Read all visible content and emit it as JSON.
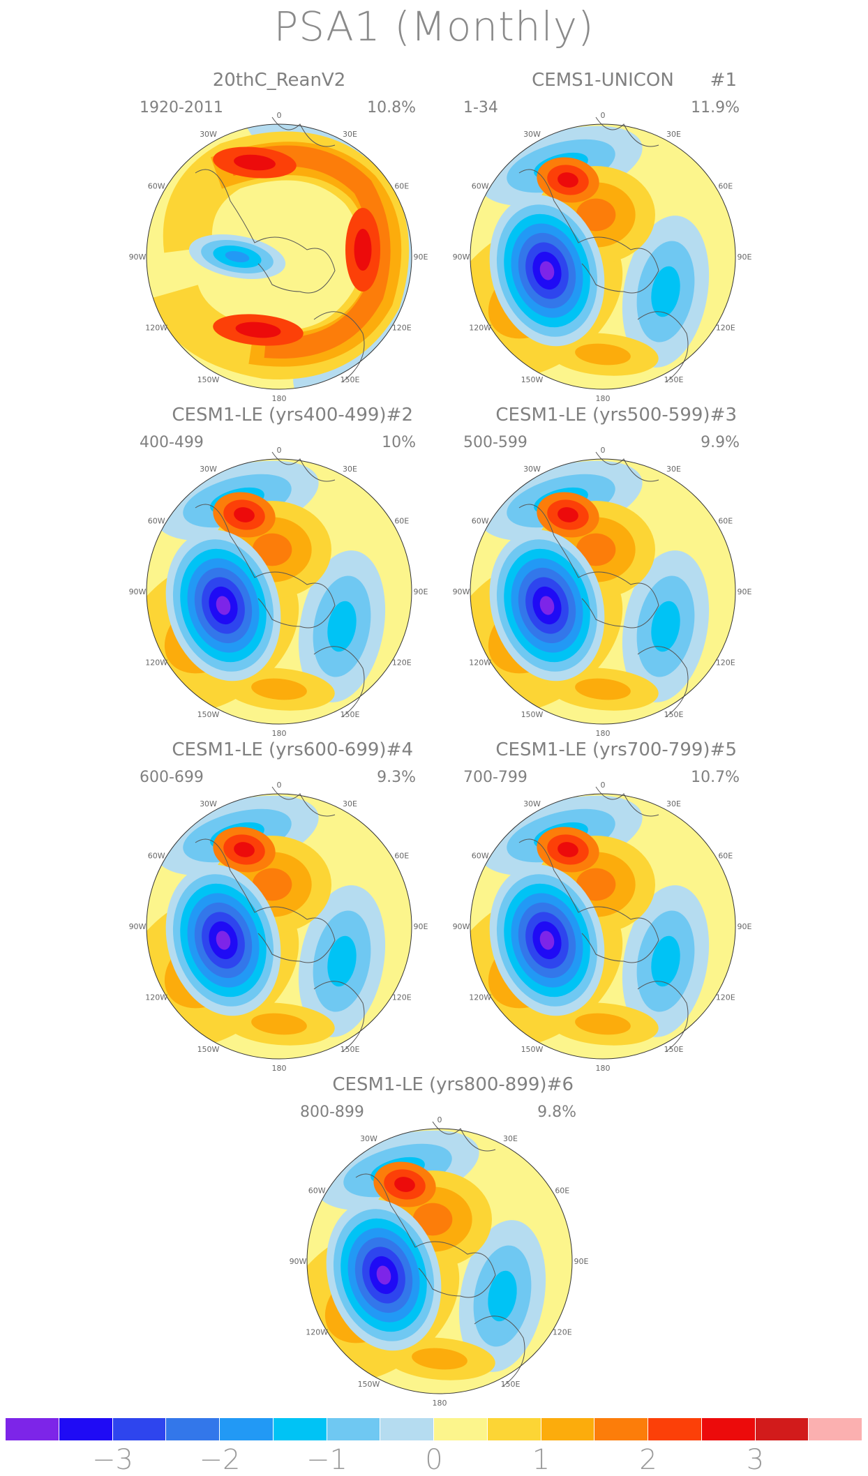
{
  "title": "PSA1 (Monthly)",
  "lon_labels": [
    "0",
    "30E",
    "60E",
    "90E",
    "120E",
    "150E",
    "180",
    "150W",
    "120W",
    "90W",
    "60W",
    "30W"
  ],
  "panels": [
    {
      "name": "20thC_ReanV2",
      "tag": "",
      "years": "1920-2011",
      "percent": "10.8%"
    },
    {
      "name": "CEMS1-UNICON",
      "tag": "#1",
      "years": "1-34",
      "percent": "11.9%"
    },
    {
      "name": "CESM1-LE (yrs400-499)",
      "tag": "#2",
      "years": "400-499",
      "percent": "10%"
    },
    {
      "name": "CESM1-LE (yrs500-599)",
      "tag": "#3",
      "years": "500-599",
      "percent": "9.9%"
    },
    {
      "name": "CESM1-LE (yrs600-699)",
      "tag": "#4",
      "years": "600-699",
      "percent": "9.3%"
    },
    {
      "name": "CESM1-LE (yrs700-799)",
      "tag": "#5",
      "years": "700-799",
      "percent": "10.7%"
    },
    {
      "name": "CESM1-LE (yrs800-899)",
      "tag": "#6",
      "years": "800-899",
      "percent": "9.8%"
    }
  ],
  "colorbar": {
    "colors": [
      "#7d25e8",
      "#1f0bf5",
      "#2e45ee",
      "#3377ea",
      "#2299f5",
      "#00c3f5",
      "#6fc8f2",
      "#b5dcf0",
      "#fcf58c",
      "#fcd535",
      "#fcac0c",
      "#fc7d0a",
      "#fc4008",
      "#ec0b0b",
      "#d21b1b",
      "#fbb0b0"
    ],
    "tick_labels": [
      "−3",
      "−2",
      "−1",
      "0",
      "1",
      "2",
      "3"
    ]
  }
}
